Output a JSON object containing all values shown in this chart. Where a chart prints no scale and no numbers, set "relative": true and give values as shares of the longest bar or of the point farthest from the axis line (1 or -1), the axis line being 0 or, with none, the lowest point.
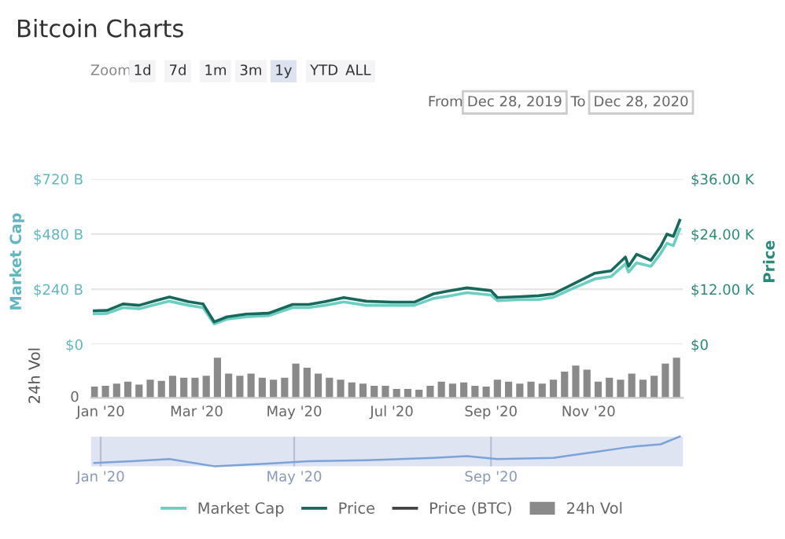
{
  "chart_data": [
    {
      "type": "line",
      "title": "Bitcoin Charts",
      "ylabel": "Market Cap",
      "y2label": "Price",
      "x": [
        "2019-12-28",
        "2020-01-05",
        "2020-01-15",
        "2020-01-25",
        "2020-02-05",
        "2020-02-13",
        "2020-02-25",
        "2020-03-05",
        "2020-03-12",
        "2020-03-20",
        "2020-04-01",
        "2020-04-15",
        "2020-04-30",
        "2020-05-10",
        "2020-05-20",
        "2020-06-01",
        "2020-06-15",
        "2020-07-01",
        "2020-07-15",
        "2020-07-27",
        "2020-08-05",
        "2020-08-17",
        "2020-09-01",
        "2020-09-05",
        "2020-09-20",
        "2020-10-01",
        "2020-10-10",
        "2020-10-21",
        "2020-11-05",
        "2020-11-15",
        "2020-11-24",
        "2020-11-26",
        "2020-12-01",
        "2020-12-10",
        "2020-12-16",
        "2020-12-20",
        "2020-12-24",
        "2020-12-28"
      ],
      "series": [
        {
          "name": "Market Cap",
          "color": "#6ccfc2",
          "values": [
            133,
            135,
            160,
            155,
            175,
            188,
            170,
            160,
            89,
            110,
            120,
            125,
            160,
            160,
            170,
            185,
            170,
            170,
            170,
            200,
            210,
            225,
            215,
            190,
            195,
            195,
            205,
            240,
            285,
            295,
            350,
            315,
            355,
            340,
            395,
            440,
            430,
            502
          ]
        },
        {
          "name": "Price",
          "color": "#17695c",
          "axis": "y2",
          "values": [
            7300,
            7400,
            8800,
            8500,
            9600,
            10300,
            9300,
            8800,
            4900,
            6000,
            6600,
            6800,
            8700,
            8700,
            9300,
            10200,
            9400,
            9200,
            9200,
            11000,
            11600,
            12300,
            11700,
            10200,
            10400,
            10600,
            11000,
            12900,
            15500,
            16000,
            19000,
            17000,
            19600,
            18300,
            21300,
            24000,
            23500,
            27000
          ]
        },
        {
          "name": "Price (BTC)",
          "color": "#444444",
          "values": [
            null,
            null,
            null,
            null,
            null,
            null,
            null,
            null,
            null,
            null,
            null,
            null,
            null,
            null,
            null,
            null,
            null,
            null,
            null,
            null,
            null,
            null,
            null,
            null,
            null,
            null,
            null,
            null,
            null,
            null,
            null,
            null,
            null,
            null,
            null,
            null,
            null,
            null
          ]
        }
      ],
      "ylim": [
        0,
        720
      ],
      "yticks": [
        {
          "value": 0,
          "label": "$0"
        },
        {
          "value": 240,
          "label": "$240 B"
        },
        {
          "value": 480,
          "label": "$480 B"
        },
        {
          "value": 720,
          "label": "$720 B"
        }
      ],
      "y2lim": [
        0,
        36000
      ],
      "y2ticks": [
        {
          "value": 0,
          "label": "$0"
        },
        {
          "value": 12000,
          "label": "$12.00 K"
        },
        {
          "value": 24000,
          "label": "$24.00 K"
        },
        {
          "value": 36000,
          "label": "$36.00 K"
        }
      ],
      "xlim": [
        "2019-12-26",
        "2020-12-30"
      ],
      "tick_labels": "y",
      "grid": "y",
      "legend": "bottom",
      "annotations": [
        "Zoom",
        "1d",
        "7d",
        "1m",
        "3m",
        "1y",
        "YTD",
        "ALL",
        "From",
        "Dec 28, 2019",
        "To",
        "Dec 28, 2020"
      ]
    },
    {
      "type": "bar",
      "relative": true,
      "ylabel": "24h Vol",
      "x": [
        "2019-12-28",
        "2020-01-04",
        "2020-01-11",
        "2020-01-18",
        "2020-01-25",
        "2020-02-01",
        "2020-02-08",
        "2020-02-15",
        "2020-02-22",
        "2020-02-29",
        "2020-03-07",
        "2020-03-14",
        "2020-03-21",
        "2020-03-28",
        "2020-04-04",
        "2020-04-11",
        "2020-04-18",
        "2020-04-25",
        "2020-05-02",
        "2020-05-09",
        "2020-05-16",
        "2020-05-23",
        "2020-05-30",
        "2020-06-06",
        "2020-06-13",
        "2020-06-20",
        "2020-06-27",
        "2020-07-04",
        "2020-07-11",
        "2020-07-18",
        "2020-07-25",
        "2020-08-01",
        "2020-08-08",
        "2020-08-15",
        "2020-08-22",
        "2020-08-29",
        "2020-09-05",
        "2020-09-12",
        "2020-09-19",
        "2020-09-26",
        "2020-10-03",
        "2020-10-10",
        "2020-10-17",
        "2020-10-24",
        "2020-10-31",
        "2020-11-07",
        "2020-11-14",
        "2020-11-21",
        "2020-11-28",
        "2020-12-05",
        "2020-12-12",
        "2020-12-19",
        "2020-12-26"
      ],
      "series": [
        {
          "name": "24h Vol",
          "color": "#8a8a8a",
          "values": [
            0.28,
            0.3,
            0.35,
            0.4,
            0.33,
            0.45,
            0.42,
            0.55,
            0.5,
            0.5,
            0.55,
            1,
            0.6,
            0.55,
            0.6,
            0.5,
            0.45,
            0.5,
            0.85,
            0.75,
            0.6,
            0.5,
            0.45,
            0.38,
            0.35,
            0.3,
            0.3,
            0.22,
            0.22,
            0.2,
            0.3,
            0.4,
            0.35,
            0.38,
            0.3,
            0.28,
            0.45,
            0.4,
            0.35,
            0.4,
            0.35,
            0.45,
            0.65,
            0.8,
            0.7,
            0.4,
            0.5,
            0.45,
            0.6,
            0.45,
            0.55,
            0.85,
            1
          ]
        }
      ],
      "xlim": [
        "2019-12-26",
        "2020-12-30"
      ],
      "xticks": [
        {
          "value": "2020-01-01",
          "label": "Jan '20"
        },
        {
          "value": "2020-03-01",
          "label": "Mar '20"
        },
        {
          "value": "2020-05-01",
          "label": "May '20"
        },
        {
          "value": "2020-07-01",
          "label": "Jul '20"
        },
        {
          "value": "2020-09-01",
          "label": "Sep '20"
        },
        {
          "value": "2020-11-01",
          "label": "Nov '20"
        }
      ],
      "tick_labels": "x",
      "annotations": [
        "0"
      ]
    },
    {
      "type": "line",
      "relative": true,
      "x": [
        "2019-12-28",
        "2020-01-20",
        "2020-02-13",
        "2020-03-12",
        "2020-04-15",
        "2020-05-10",
        "2020-06-15",
        "2020-07-27",
        "2020-08-17",
        "2020-09-05",
        "2020-10-10",
        "2020-10-21",
        "2020-11-05",
        "2020-11-24",
        "2020-12-01",
        "2020-12-16",
        "2020-12-28"
      ],
      "values": [
        0.11,
        0.17,
        0.24,
        0,
        0.09,
        0.17,
        0.2,
        0.28,
        0.34,
        0.24,
        0.28,
        0.37,
        0.48,
        0.63,
        0.67,
        0.74,
        1
      ],
      "color": "#7ba3d9",
      "xlim": [
        "2019-12-26",
        "2020-12-30"
      ],
      "xticks": [
        {
          "value": "2020-01-01",
          "label": "Jan '20"
        },
        {
          "value": "2020-05-01",
          "label": "May '20"
        },
        {
          "value": "2020-09-01",
          "label": "Sep '20"
        }
      ],
      "tick_labels": "x",
      "grid": "x"
    }
  ]
}
